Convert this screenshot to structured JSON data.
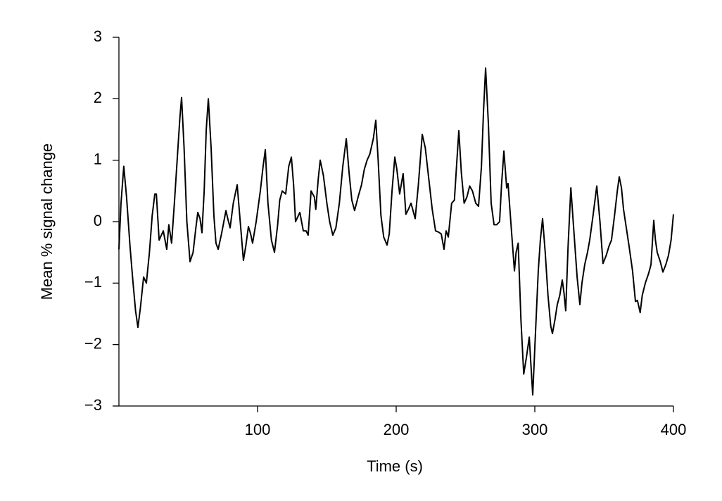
{
  "chart_data": {
    "type": "line",
    "xlabel": "Time (s)",
    "ylabel": "Mean % signal change",
    "xlim": [
      0,
      400
    ],
    "ylim": [
      -3,
      3
    ],
    "xticks": [
      100,
      200,
      300,
      400
    ],
    "yticks": [
      {
        "value": -3,
        "label": "−3"
      },
      {
        "value": -2,
        "label": "−2"
      },
      {
        "value": -1,
        "label": "−1"
      },
      0,
      1,
      2,
      3
    ],
    "color": "#000000",
    "x": [
      0,
      1.5,
      3.5,
      5.5,
      8,
      10,
      12,
      13.7,
      15.5,
      17.8,
      19.8,
      22,
      24,
      25.9,
      27,
      29,
      32,
      34.5,
      36,
      38,
      40,
      42,
      44,
      45.2,
      47,
      49,
      51.3,
      53.5,
      55.5,
      56.9,
      58.5,
      59.9,
      61.5,
      63,
      64.5,
      66.5,
      68.5,
      70,
      71.6,
      74,
      77.2,
      78.5,
      80.2,
      82.5,
      85.3,
      87.5,
      89.8,
      91.5,
      93.4,
      95,
      96.4,
      99,
      102,
      104,
      105.6,
      107.5,
      110,
      112.2,
      114.5,
      116,
      117.8,
      120.3,
      122.5,
      124.4,
      126,
      127.4,
      130.5,
      133,
      135,
      136.5,
      138.6,
      141,
      142,
      143.8,
      145.2,
      147.5,
      150,
      152,
      154.3,
      156.5,
      159,
      161.5,
      164,
      166,
      168,
      170,
      172.5,
      175,
      177,
      179,
      181,
      183.5,
      185.3,
      187,
      189,
      191,
      193.4,
      195,
      197,
      199,
      200.5,
      202.5,
      205,
      207,
      208.8,
      210.7,
      213.7,
      216,
      218.8,
      221,
      223.5,
      226,
      228.4,
      230.5,
      232.5,
      234.5,
      236,
      237.6,
      240,
      242,
      243.8,
      245.2,
      247,
      249,
      251,
      253,
      255,
      257.4,
      259.4,
      261.5,
      263,
      264.5,
      266.5,
      268.5,
      270.6,
      272.5,
      274.6,
      276,
      277.7,
      279.7,
      280.7,
      283,
      285.3,
      286.5,
      288,
      290,
      292,
      294,
      296,
      298.5,
      300.5,
      302.5,
      304,
      305.6,
      307.5,
      309.5,
      311.5,
      312.7,
      314.5,
      316.2,
      318,
      319.8,
      321,
      322.3,
      324,
      326,
      328,
      330.5,
      332.5,
      334,
      336,
      338,
      339.6,
      342,
      344.7,
      347,
      349.2,
      351.5,
      353.5,
      355.3,
      357.5,
      359.5,
      360.9,
      362.5,
      364,
      366,
      368,
      370.5,
      372.6,
      374,
      376,
      377.5,
      379.7,
      382,
      383.8,
      385.8,
      387,
      388.3,
      390.5,
      392.4,
      394.5,
      396.4,
      398.3,
      400
    ],
    "values": [
      -0.45,
      0.3,
      0.9,
      0.4,
      -0.4,
      -0.95,
      -1.45,
      -1.72,
      -1.4,
      -0.9,
      -1.0,
      -0.5,
      0.1,
      0.45,
      0.45,
      -0.3,
      -0.15,
      -0.45,
      -0.05,
      -0.35,
      0.3,
      1.0,
      1.7,
      2.02,
      1.2,
      0.0,
      -0.65,
      -0.5,
      -0.1,
      0.15,
      0.05,
      -0.18,
      0.5,
      1.5,
      2.0,
      1.2,
      0.1,
      -0.35,
      -0.45,
      -0.2,
      0.18,
      0.05,
      -0.1,
      0.3,
      0.6,
      0.0,
      -0.63,
      -0.4,
      -0.08,
      -0.2,
      -0.35,
      0.0,
      0.5,
      0.9,
      1.17,
      0.3,
      -0.3,
      -0.5,
      -0.05,
      0.35,
      0.5,
      0.45,
      0.9,
      1.05,
      0.6,
      0.0,
      0.15,
      -0.15,
      -0.15,
      -0.22,
      0.5,
      0.4,
      0.2,
      0.7,
      1.0,
      0.75,
      0.3,
      0.0,
      -0.22,
      -0.1,
      0.3,
      0.9,
      1.35,
      0.8,
      0.35,
      0.18,
      0.4,
      0.6,
      0.85,
      1.0,
      1.1,
      1.35,
      1.65,
      1.0,
      0.1,
      -0.25,
      -0.38,
      -0.2,
      0.5,
      1.05,
      0.85,
      0.45,
      0.78,
      0.12,
      0.2,
      0.3,
      0.05,
      0.6,
      1.42,
      1.2,
      0.7,
      0.2,
      -0.15,
      -0.17,
      -0.2,
      -0.45,
      -0.15,
      -0.25,
      0.3,
      0.35,
      1.0,
      1.48,
      0.8,
      0.3,
      0.4,
      0.58,
      0.5,
      0.3,
      0.25,
      0.9,
      1.8,
      2.5,
      1.6,
      0.3,
      -0.05,
      -0.05,
      0.0,
      0.6,
      1.15,
      0.55,
      0.62,
      -0.1,
      -0.8,
      -0.5,
      -0.35,
      -1.6,
      -2.48,
      -2.2,
      -1.88,
      -2.82,
      -1.8,
      -0.8,
      -0.3,
      0.05,
      -0.5,
      -1.2,
      -1.7,
      -1.82,
      -1.6,
      -1.35,
      -1.2,
      -0.95,
      -1.15,
      -1.45,
      -0.4,
      0.55,
      -0.1,
      -0.9,
      -1.35,
      -1.0,
      -0.7,
      -0.5,
      -0.3,
      0.1,
      0.58,
      0.0,
      -0.68,
      -0.55,
      -0.4,
      -0.3,
      0.1,
      0.5,
      0.73,
      0.55,
      0.2,
      -0.1,
      -0.4,
      -0.8,
      -1.3,
      -1.28,
      -1.48,
      -1.2,
      -1.0,
      -0.85,
      -0.7,
      0.02,
      -0.3,
      -0.5,
      -0.65,
      -0.82,
      -0.7,
      -0.55,
      -0.3,
      0.12
    ]
  }
}
